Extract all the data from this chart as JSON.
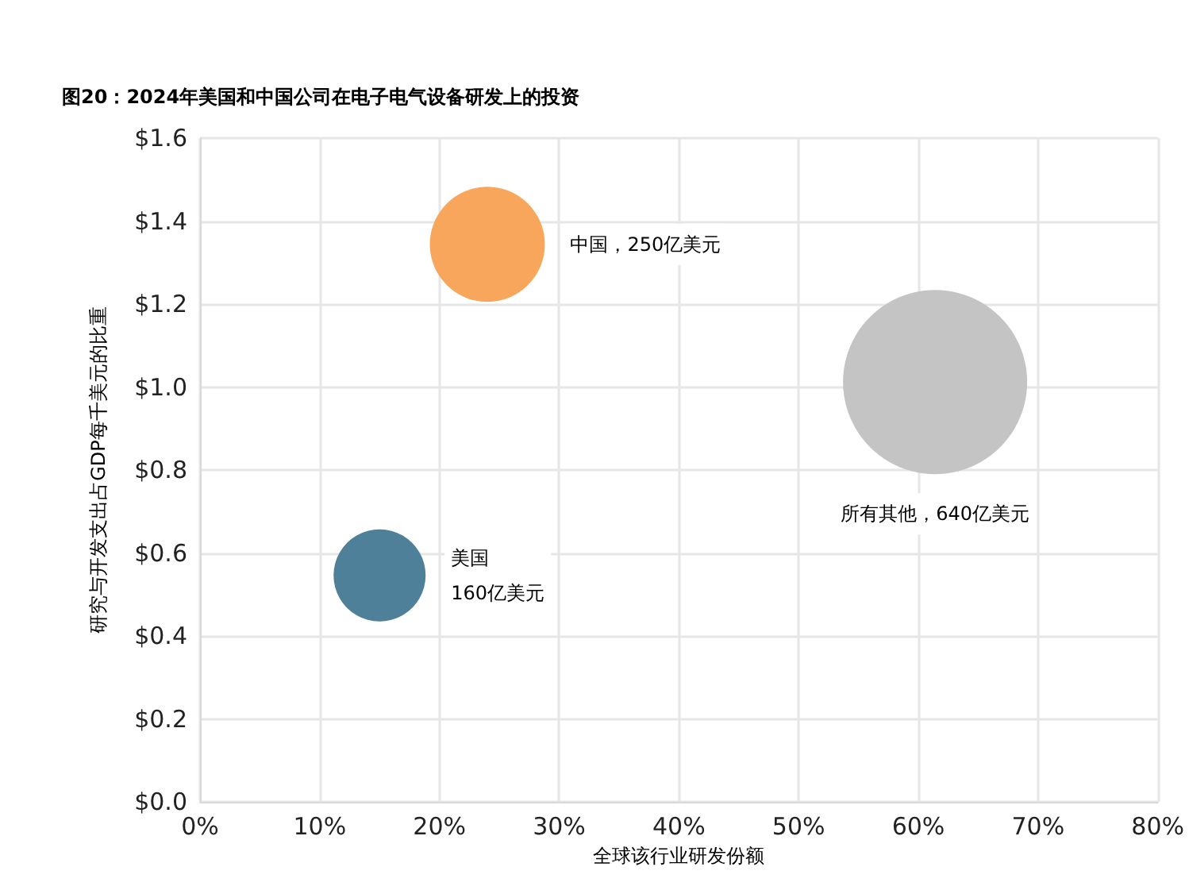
{
  "chart_data": {
    "type": "bubble",
    "title": "图20：2024年美国和中国公司在电子电气设备研发上的投资",
    "xlabel": "全球该行业研发份额",
    "ylabel": "研究与开发支出占GDP每千美元的比重",
    "series": [
      {
        "name": "美国\n160亿美元",
        "color": "#4e8099",
        "x": [
          15
        ],
        "values": [
          0.546
        ],
        "sizes": [
          0.25
        ]
      },
      {
        "name": "中国，250亿美元",
        "color": "#f7a65c",
        "x": [
          24
        ],
        "values": [
          1.344
        ],
        "sizes": [
          0.39
        ]
      },
      {
        "name": "所有其他，640亿美元",
        "color": "#c4c4c4",
        "x": [
          61.4
        ],
        "values": [
          1.012
        ],
        "sizes": [
          1
        ]
      }
    ],
    "xlim": [
      0,
      80
    ],
    "xticks": [
      {
        "value": 0,
        "label": "0%"
      },
      {
        "value": 10,
        "label": "10%"
      },
      {
        "value": 20,
        "label": "20%"
      },
      {
        "value": 30,
        "label": "30%"
      },
      {
        "value": 40,
        "label": "40%"
      },
      {
        "value": 50,
        "label": "50%"
      },
      {
        "value": 60,
        "label": "60%"
      },
      {
        "value": 70,
        "label": "70%"
      },
      {
        "value": 80,
        "label": "80%"
      }
    ],
    "ylim": [
      0,
      1.6
    ],
    "yticks": [
      {
        "value": 0,
        "label": "$0.0"
      },
      {
        "value": 0.2,
        "label": "$0.2"
      },
      {
        "value": 0.4,
        "label": "$0.4"
      },
      {
        "value": 0.6,
        "label": "$0.6"
      },
      {
        "value": 0.8,
        "label": "$0.8"
      },
      {
        "value": 1.0,
        "label": "$1.0"
      },
      {
        "value": 1.2,
        "label": "$1.2"
      },
      {
        "value": 1.4,
        "label": "$1.4"
      },
      {
        "value": 1.6,
        "label": "$1.6"
      }
    ],
    "grid": true
  }
}
